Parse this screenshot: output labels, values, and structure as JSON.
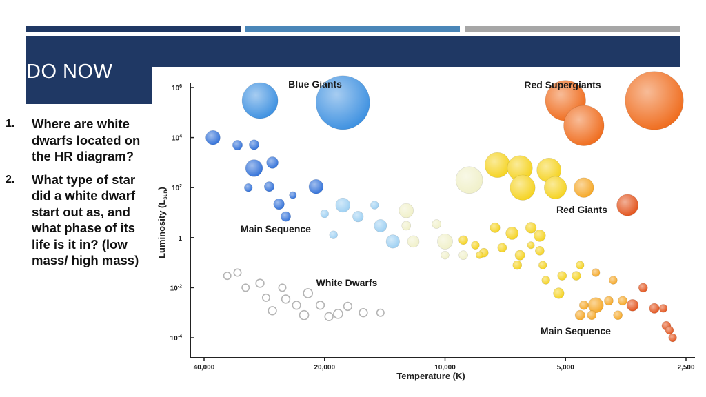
{
  "colors": {
    "navy": "#1f3864",
    "steel_blue": "#4a86b8",
    "gray": "#a6a6a6"
  },
  "slide": {
    "title": "DO NOW",
    "questions": [
      {
        "number": "1.",
        "text": "Where are white dwarfs located on the HR diagram?"
      },
      {
        "number": "2.",
        "text": "What type of star did a white dwarf start out as, and what phase of its life is it in? (low mass/ high mass)"
      }
    ]
  },
  "chart_data": {
    "type": "scatter",
    "xlabel": "Temperature (K)",
    "ylabel_main": "Luminosity (L",
    "ylabel_sub": "sun",
    "ylabel_end": ")",
    "x_ticks": [
      "40,000",
      "20,000",
      "10,000",
      "5,000",
      "2,500"
    ],
    "x_tick_values": [
      40000,
      20000,
      10000,
      5000,
      2500
    ],
    "x_scale": "log-reversed",
    "y_ticks": [
      {
        "base": "10",
        "exp": "6",
        "value": 1000000
      },
      {
        "base": "10",
        "exp": "4",
        "value": 10000
      },
      {
        "base": "10",
        "exp": "2",
        "value": 100
      },
      {
        "base": "1",
        "exp": "",
        "value": 1
      },
      {
        "base": "10",
        "exp": "-2",
        "value": 0.01
      },
      {
        "base": "10",
        "exp": "-4",
        "value": 0.0001
      }
    ],
    "y_scale": "log",
    "grid": false,
    "region_labels": [
      "Blue Giants",
      "Red Supergiants",
      "Main Sequence",
      "Red Giants",
      "White Dwarfs",
      "Main Sequence"
    ],
    "groups": [
      {
        "color": "#3b8fe0",
        "points": [
          [
            29000,
            300000,
            4
          ],
          [
            18000,
            250000,
            6
          ]
        ]
      },
      {
        "color": "#ef6a1a",
        "points": [
          [
            5000,
            300000,
            4.5
          ],
          [
            3000,
            300000,
            6.5
          ],
          [
            4500,
            30000,
            4.5
          ]
        ]
      },
      {
        "color": "#2f6fd8",
        "points": [
          [
            38000,
            10000,
            1.6
          ],
          [
            33000,
            5000,
            1.1
          ],
          [
            30000,
            5200,
            1.1
          ],
          [
            30000,
            600,
            1.9
          ],
          [
            27000,
            1000,
            1.3
          ],
          [
            31000,
            100,
            0.9
          ],
          [
            27500,
            110,
            1.1
          ],
          [
            24000,
            50,
            0.8
          ],
          [
            21000,
            110,
            1.6
          ],
          [
            26000,
            22,
            1.2
          ],
          [
            25000,
            7,
            1.1
          ]
        ]
      },
      {
        "color": "#9ccff2",
        "points": [
          [
            20000,
            9,
            0.9
          ],
          [
            18000,
            20,
            1.6
          ],
          [
            16500,
            7,
            1.2
          ],
          [
            15000,
            20,
            0.9
          ],
          [
            19000,
            1.3,
            0.9
          ],
          [
            14500,
            3,
            1.4
          ],
          [
            13500,
            0.7,
            1.5
          ]
        ]
      },
      {
        "color": "#f0f0c8",
        "points": [
          [
            12500,
            12,
            1.6
          ],
          [
            12500,
            3,
            1.0
          ],
          [
            12000,
            0.7,
            1.3
          ],
          [
            10000,
            0.7,
            1.7
          ],
          [
            10500,
            3.5,
            1.0
          ],
          [
            10000,
            0.2,
            0.9
          ],
          [
            9000,
            0.2,
            1.0
          ],
          [
            8700,
            200,
            3.0
          ]
        ]
      },
      {
        "color": "#f5d21c",
        "points": [
          [
            7400,
            800,
            2.8
          ],
          [
            6500,
            600,
            2.8
          ],
          [
            5500,
            500,
            2.7
          ],
          [
            6400,
            100,
            2.8
          ],
          [
            5300,
            100,
            2.5
          ],
          [
            7500,
            2.5,
            1.1
          ],
          [
            6100,
            2.5,
            1.2
          ],
          [
            5800,
            1.2,
            1.3
          ],
          [
            6800,
            1.5,
            1.4
          ],
          [
            9000,
            0.8,
            1.0
          ],
          [
            8400,
            0.5,
            0.9
          ],
          [
            8000,
            0.25,
            1.0
          ],
          [
            7200,
            0.4,
            1.0
          ],
          [
            8200,
            0.2,
            0.8
          ],
          [
            6100,
            0.5,
            0.8
          ],
          [
            5800,
            0.3,
            1.0
          ],
          [
            6500,
            0.2,
            1.1
          ],
          [
            6600,
            0.08,
            1.0
          ],
          [
            5700,
            0.08,
            0.9
          ],
          [
            5600,
            0.02,
            0.9
          ],
          [
            5100,
            0.03,
            1.0
          ],
          [
            4700,
            0.03,
            1.0
          ],
          [
            4600,
            0.08,
            0.9
          ],
          [
            5200,
            0.006,
            1.2
          ]
        ]
      },
      {
        "color": "#f5a623",
        "points": [
          [
            4500,
            100,
            2.2
          ],
          [
            4200,
            0.04,
            0.9
          ],
          [
            3800,
            0.02,
            0.9
          ],
          [
            4200,
            0.002,
            1.7
          ],
          [
            3900,
            0.003,
            1.0
          ],
          [
            3600,
            0.003,
            1.0
          ],
          [
            4300,
            0.0008,
            1.0
          ],
          [
            3700,
            0.0008,
            1.0
          ],
          [
            4600,
            0.0008,
            1.1
          ],
          [
            4500,
            0.002,
            1.0
          ]
        ]
      },
      {
        "color": "#e25018",
        "points": [
          [
            3500,
            20,
            2.4
          ],
          [
            3200,
            0.01,
            1.0
          ],
          [
            3400,
            0.002,
            1.3
          ],
          [
            3000,
            0.0015,
            1.1
          ],
          [
            2850,
            0.0015,
            0.9
          ],
          [
            2800,
            0.0003,
            1.0
          ],
          [
            2750,
            0.0002,
            0.9
          ],
          [
            2700,
            0.0001,
            0.9
          ]
        ]
      },
      {
        "color": "#ffffff",
        "points": [
          [
            35000,
            0.03,
            0.8
          ],
          [
            33000,
            0.04,
            0.8
          ],
          [
            29000,
            0.015,
            0.9
          ],
          [
            31500,
            0.01,
            0.8
          ],
          [
            25500,
            0.01,
            0.8
          ],
          [
            28000,
            0.004,
            0.8
          ],
          [
            25000,
            0.0035,
            0.9
          ],
          [
            22000,
            0.006,
            1.0
          ],
          [
            23500,
            0.002,
            0.9
          ],
          [
            20500,
            0.002,
            0.9
          ],
          [
            19500,
            0.0007,
            0.9
          ],
          [
            22500,
            0.0008,
            1.0
          ],
          [
            18500,
            0.0009,
            1.0
          ],
          [
            17500,
            0.0018,
            0.9
          ],
          [
            16000,
            0.001,
            0.9
          ],
          [
            14500,
            0.001,
            0.8
          ],
          [
            27000,
            0.0012,
            0.9
          ]
        ]
      }
    ]
  }
}
